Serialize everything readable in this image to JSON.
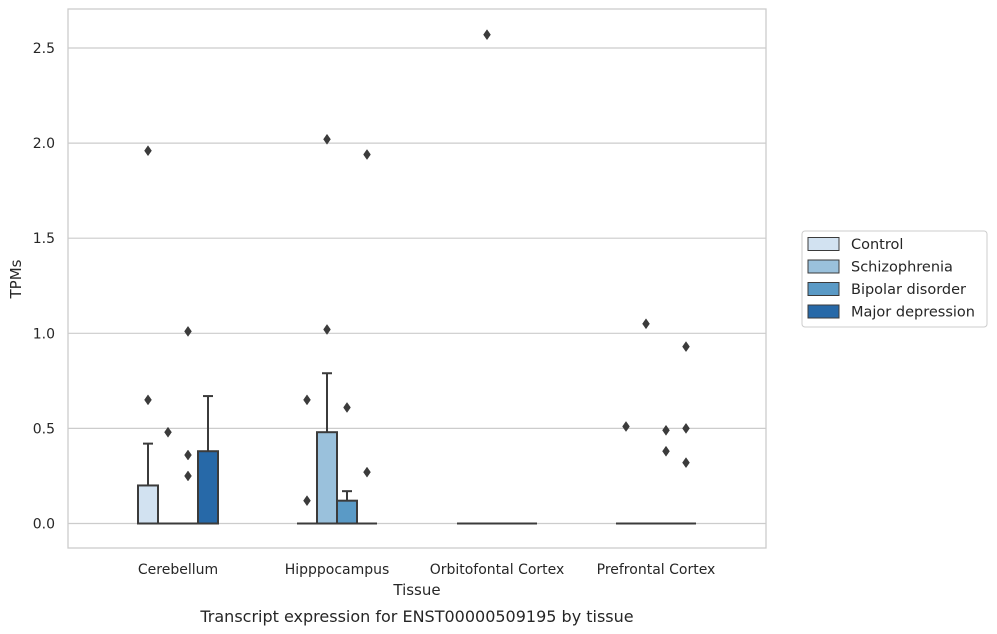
{
  "caption": "Transcript expression for ENST00000509195 by tissue",
  "chart_data": {
    "type": "box",
    "xlabel": "Tissue",
    "ylabel": "TPMs",
    "categories": [
      "Cerebellum",
      "Hipppocampus",
      "Orbitofontal Cortex",
      "Prefrontal Cortex"
    ],
    "ylim": [
      -0.12,
      2.7
    ],
    "yticks": [
      0.0,
      0.5,
      1.0,
      1.5,
      2.0,
      2.5
    ],
    "ytick_labels": [
      "0.0",
      "0.5",
      "1.0",
      "1.5",
      "2.0",
      "2.5"
    ],
    "grid": "horizontal",
    "legend_position": "right",
    "series": [
      {
        "name": "Control",
        "color": "#d2e2f1",
        "boxes": [
          {
            "q1": 0.0,
            "median": 0.0,
            "q3": 0.2,
            "whisker_low": 0.0,
            "whisker_high": 0.42,
            "outliers": [
              0.65,
              1.96
            ]
          },
          {
            "q1": 0.0,
            "median": 0.0,
            "q3": 0.0,
            "whisker_low": 0.0,
            "whisker_high": 0.0,
            "outliers": [
              0.12,
              0.65
            ]
          },
          {
            "q1": 0.0,
            "median": 0.0,
            "q3": 0.0,
            "whisker_low": 0.0,
            "whisker_high": 0.0,
            "outliers": []
          },
          {
            "q1": 0.0,
            "median": 0.0,
            "q3": 0.0,
            "whisker_low": 0.0,
            "whisker_high": 0.0,
            "outliers": [
              0.51
            ]
          }
        ]
      },
      {
        "name": "Schizophrenia",
        "color": "#9ac1dc",
        "boxes": [
          {
            "q1": 0.0,
            "median": 0.0,
            "q3": 0.0,
            "whisker_low": 0.0,
            "whisker_high": 0.0,
            "outliers": [
              0.48
            ]
          },
          {
            "q1": 0.0,
            "median": 0.0,
            "q3": 0.48,
            "whisker_low": 0.0,
            "whisker_high": 0.79,
            "outliers": [
              1.02,
              2.02
            ]
          },
          {
            "q1": 0.0,
            "median": 0.0,
            "q3": 0.0,
            "whisker_low": 0.0,
            "whisker_high": 0.0,
            "outliers": [
              2.57
            ]
          },
          {
            "q1": 0.0,
            "median": 0.0,
            "q3": 0.0,
            "whisker_low": 0.0,
            "whisker_high": 0.0,
            "outliers": [
              1.05
            ]
          }
        ]
      },
      {
        "name": "Bipolar disorder",
        "color": "#5a9ac6",
        "boxes": [
          {
            "q1": 0.0,
            "median": 0.0,
            "q3": 0.0,
            "whisker_low": 0.0,
            "whisker_high": 0.0,
            "outliers": [
              0.25,
              0.36,
              1.01
            ]
          },
          {
            "q1": 0.0,
            "median": 0.0,
            "q3": 0.12,
            "whisker_low": 0.0,
            "whisker_high": 0.17,
            "outliers": [
              0.61
            ]
          },
          {
            "q1": 0.0,
            "median": 0.0,
            "q3": 0.0,
            "whisker_low": 0.0,
            "whisker_high": 0.0,
            "outliers": []
          },
          {
            "q1": 0.0,
            "median": 0.0,
            "q3": 0.0,
            "whisker_low": 0.0,
            "whisker_high": 0.0,
            "outliers": [
              0.38,
              0.49
            ]
          }
        ]
      },
      {
        "name": "Major depression",
        "color": "#2769a8",
        "boxes": [
          {
            "q1": 0.0,
            "median": 0.0,
            "q3": 0.38,
            "whisker_low": 0.0,
            "whisker_high": 0.67,
            "outliers": []
          },
          {
            "q1": 0.0,
            "median": 0.0,
            "q3": 0.0,
            "whisker_low": 0.0,
            "whisker_high": 0.0,
            "outliers": [
              0.27,
              1.94
            ]
          },
          {
            "q1": 0.0,
            "median": 0.0,
            "q3": 0.0,
            "whisker_low": 0.0,
            "whisker_high": 0.0,
            "outliers": []
          },
          {
            "q1": 0.0,
            "median": 0.0,
            "q3": 0.0,
            "whisker_low": 0.0,
            "whisker_high": 0.0,
            "outliers": [
              0.32,
              0.5,
              0.93
            ]
          }
        ]
      }
    ]
  }
}
